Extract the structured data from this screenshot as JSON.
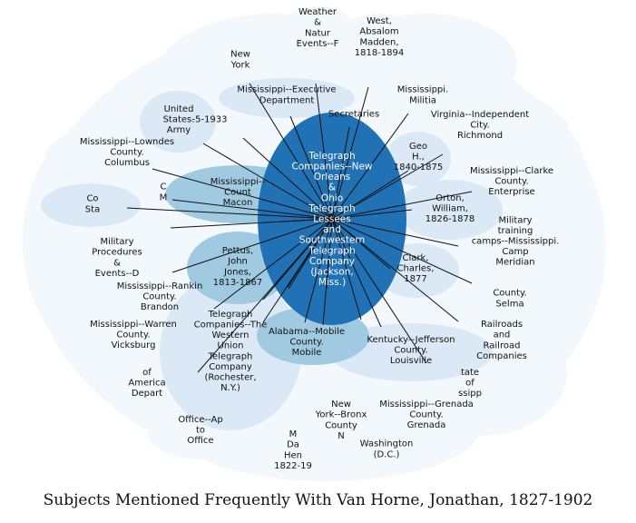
{
  "title": "Subjects Mentioned Frequently With Van Horne, Jonathan, 1827-1902",
  "colors": {
    "bg": "#ffffff",
    "faint": "#f3f8fd",
    "light": "#dbe8f5",
    "medium": "#9fcae2",
    "dark": "#2171b5",
    "edge": "#111111",
    "text": "#111111",
    "hub_text": "#ffffff"
  },
  "hub": {
    "label": "Telegraph Companies--New Orleans & Ohio Telegraph Lessees and Southwestern Telegraph Company (Jackson, Miss.)",
    "lines": [
      "Telegraph",
      "Companies--New",
      "Orleans",
      "&",
      "Ohio",
      "Telegraph",
      "Lessees",
      "and",
      "Southwestern",
      "Telegraph",
      "Company",
      "(Jackson,",
      "Miss.)"
    ]
  },
  "nodes": [
    {
      "id": "weather",
      "lines": [
        "Weather",
        "&",
        "Natur",
        "Events--F"
      ]
    },
    {
      "id": "west",
      "lines": [
        "West,",
        "Absalom",
        "Madden,",
        "1818-1894"
      ]
    },
    {
      "id": "new-york",
      "lines": [
        "New",
        "York"
      ]
    },
    {
      "id": "ms-exec",
      "lines": [
        "Mississippi--Executive",
        "Department"
      ]
    },
    {
      "id": "secretaries",
      "lines": [
        "Secretaries"
      ]
    },
    {
      "id": "ms-militia",
      "lines": [
        "Mississippi.",
        "Militia"
      ]
    },
    {
      "id": "usa",
      "lines": [
        "United",
        "States.",
        "Army"
      ]
    },
    {
      "id": "years-1933",
      "lines": [
        "-5-1933"
      ]
    },
    {
      "id": "va-richmond",
      "lines": [
        "Virginia--Independent",
        "City.",
        "Richmond"
      ]
    },
    {
      "id": "geo",
      "lines": [
        "Geo",
        "H.,",
        "1840-1875"
      ]
    },
    {
      "id": "ms-lowndes",
      "lines": [
        "Mississippi--Lowndes",
        "County.",
        "Columbus"
      ]
    },
    {
      "id": "ms-clarke",
      "lines": [
        "Mississippi--Clarke",
        "County.",
        "Enterprise"
      ]
    },
    {
      "id": "ms-noxubee",
      "lines": [
        "Mississippi--",
        "Count",
        "Macon"
      ]
    },
    {
      "id": "orton",
      "lines": [
        "Orton,",
        "William,",
        "1826-1878"
      ]
    },
    {
      "id": "co-st",
      "lines": [
        "Co",
        "Sta"
      ]
    },
    {
      "id": "mil-frag",
      "lines": [
        "C",
        "M"
      ]
    },
    {
      "id": "military-camps",
      "lines": [
        "Military",
        "training",
        "camps--Mississippi.",
        "Camp",
        "Meridian"
      ]
    },
    {
      "id": "pettus",
      "lines": [
        "Pettus,",
        "John",
        "Jones,",
        "1813-1867"
      ]
    },
    {
      "id": "clark",
      "lines": [
        "Clark,",
        "Charles,",
        "1877"
      ]
    },
    {
      "id": "military-procedures",
      "lines": [
        "Military",
        "Procedures",
        "&",
        "Events--D"
      ]
    },
    {
      "id": "ms-rankin",
      "lines": [
        "Mississippi--Rankin",
        "County.",
        "Brandon"
      ]
    },
    {
      "id": "county-selma",
      "lines": [
        "County.",
        "Selma"
      ]
    },
    {
      "id": "ms-warren",
      "lines": [
        "Mississippi--Warren",
        "County.",
        "Vicksburg"
      ]
    },
    {
      "id": "al-mobile",
      "lines": [
        "Alabama--Mobile",
        "County.",
        "Mobile"
      ]
    },
    {
      "id": "railroads",
      "lines": [
        "Railroads",
        "and",
        "Railroad",
        "Companies"
      ]
    },
    {
      "id": "western-union",
      "lines": [
        "Telegraph",
        "Companies--The",
        "Western",
        "Union",
        "Telegraph",
        "Company",
        "(Rochester,",
        "N.Y.)"
      ]
    },
    {
      "id": "ky-louisville",
      "lines": [
        "Kentucky--Jefferson",
        "County.",
        "Louisville"
      ]
    },
    {
      "id": "america-dept",
      "lines": [
        "of",
        "America",
        "Depart"
      ]
    },
    {
      "id": "state-of",
      "lines": [
        "tate",
        "of",
        "ssipp"
      ]
    },
    {
      "id": "ms-grenada",
      "lines": [
        "Mississippi--Grenada",
        "County.",
        "Grenada"
      ]
    },
    {
      "id": "office",
      "lines": [
        "Office--Ap",
        "to",
        "Office"
      ]
    },
    {
      "id": "ny-bronx",
      "lines": [
        "New",
        "York--Bronx",
        "County",
        "N"
      ]
    },
    {
      "id": "davis",
      "lines": [
        "M",
        "Da",
        "Hen",
        "1822-19"
      ]
    },
    {
      "id": "washington",
      "lines": [
        "Washington",
        "(D.C.)"
      ]
    }
  ]
}
